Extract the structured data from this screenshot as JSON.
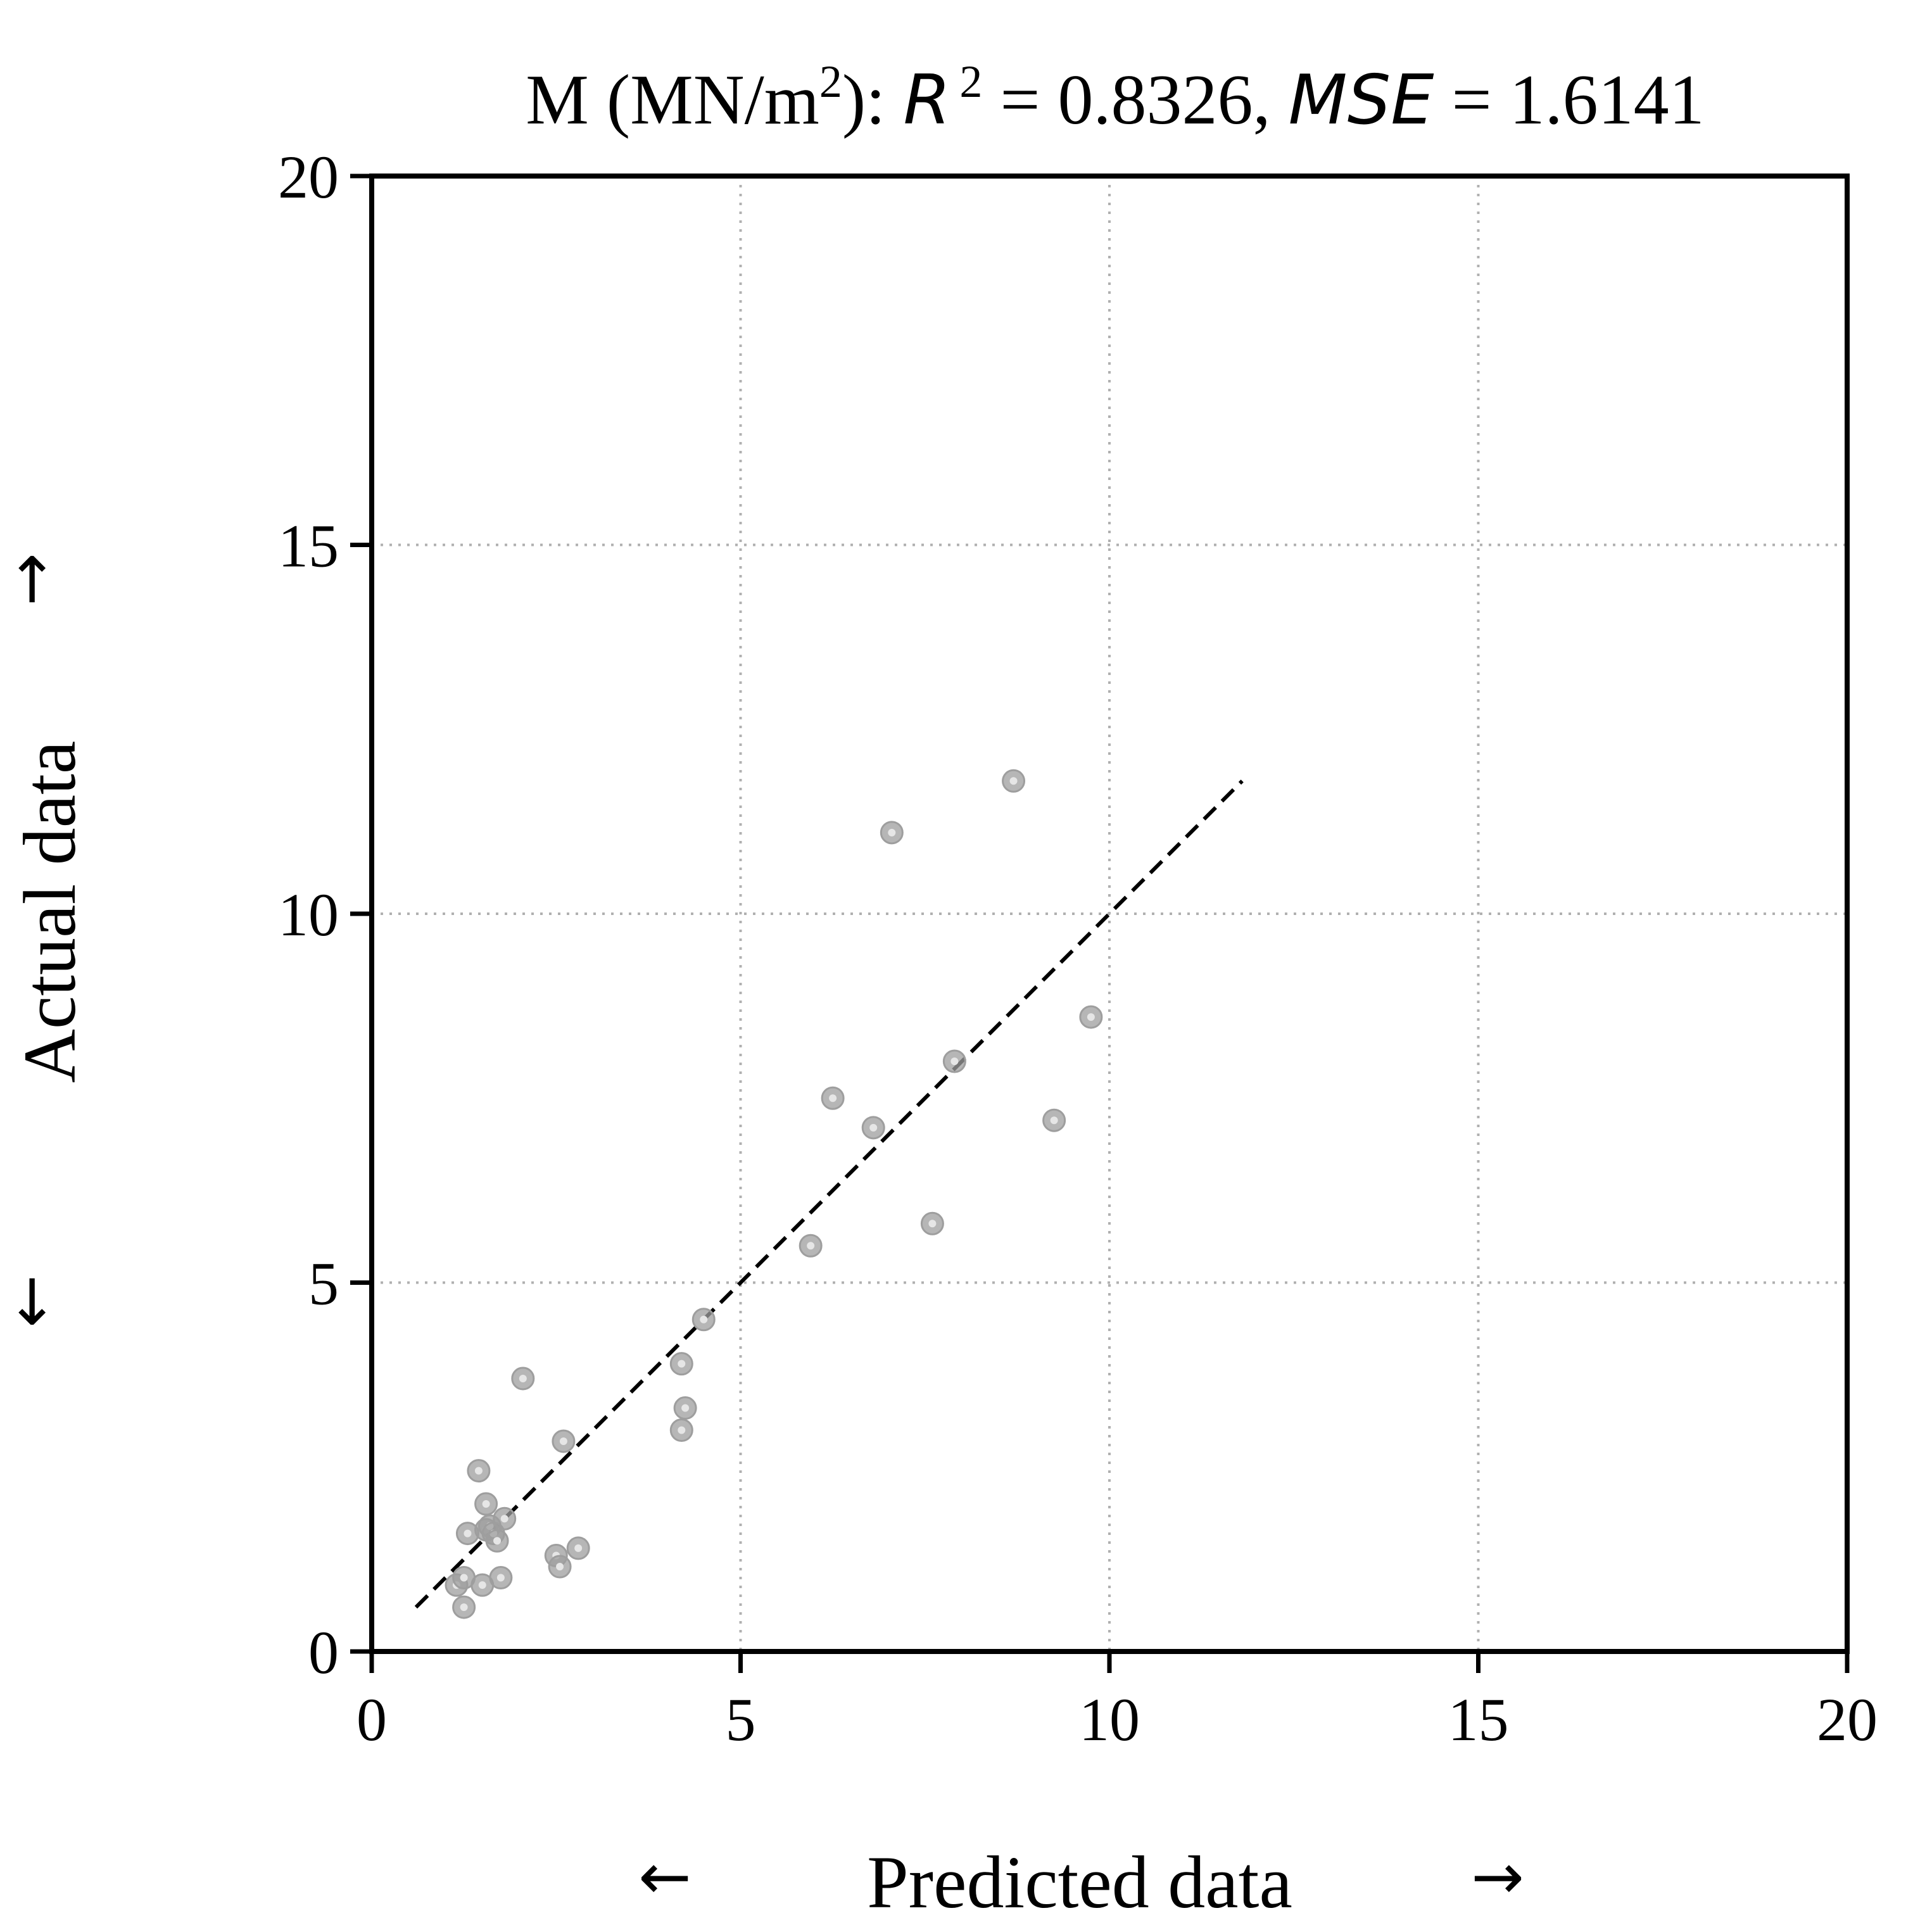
{
  "chart_data": {
    "type": "scatter",
    "title": {
      "prefix": "M (MN/m",
      "superscript": "2",
      "after_unit": "): ",
      "r2_symbol": "R",
      "r2_exponent": "2",
      "r2_value": " = 0.8326, ",
      "mse_symbol": "MSE",
      "mse_value": " = 1.6141"
    },
    "xlabel": "Predicted data",
    "ylabel": "Actual data",
    "xlabel_arrows": [
      "←",
      "→"
    ],
    "ylabel_arrows": [
      "←",
      "→"
    ],
    "xlim": [
      0,
      20
    ],
    "ylim": [
      0,
      20
    ],
    "xticks": [
      "0",
      "5",
      "10",
      "15",
      "20"
    ],
    "yticks": [
      "0",
      "5",
      "10",
      "15",
      "20"
    ],
    "grid": true,
    "grid_style": "dotted",
    "marker_color": "#9e9e9e",
    "line_color": "#000000",
    "fit_line": {
      "style": "dashed",
      "x": [
        0.6,
        11.8
      ],
      "y": [
        0.6,
        11.8
      ]
    },
    "points": [
      {
        "x": 1.15,
        "y": 0.9
      },
      {
        "x": 1.25,
        "y": 1.0
      },
      {
        "x": 1.25,
        "y": 0.6
      },
      {
        "x": 1.3,
        "y": 1.6
      },
      {
        "x": 1.45,
        "y": 2.45
      },
      {
        "x": 1.5,
        "y": 0.9
      },
      {
        "x": 1.55,
        "y": 2.0
      },
      {
        "x": 1.55,
        "y": 1.65
      },
      {
        "x": 1.6,
        "y": 1.7
      },
      {
        "x": 1.65,
        "y": 1.6
      },
      {
        "x": 1.7,
        "y": 1.5
      },
      {
        "x": 1.75,
        "y": 1.0
      },
      {
        "x": 1.8,
        "y": 1.8
      },
      {
        "x": 2.05,
        "y": 3.7
      },
      {
        "x": 2.5,
        "y": 1.3
      },
      {
        "x": 2.55,
        "y": 1.15
      },
      {
        "x": 2.6,
        "y": 2.85
      },
      {
        "x": 2.8,
        "y": 1.4
      },
      {
        "x": 4.2,
        "y": 3.0
      },
      {
        "x": 4.2,
        "y": 3.9
      },
      {
        "x": 4.25,
        "y": 3.3
      },
      {
        "x": 4.5,
        "y": 4.5
      },
      {
        "x": 5.95,
        "y": 5.5
      },
      {
        "x": 6.25,
        "y": 7.5
      },
      {
        "x": 6.8,
        "y": 7.1
      },
      {
        "x": 7.05,
        "y": 11.1
      },
      {
        "x": 7.6,
        "y": 5.8
      },
      {
        "x": 7.9,
        "y": 8.0
      },
      {
        "x": 8.7,
        "y": 11.8
      },
      {
        "x": 9.25,
        "y": 7.2
      },
      {
        "x": 9.75,
        "y": 8.6
      }
    ]
  }
}
